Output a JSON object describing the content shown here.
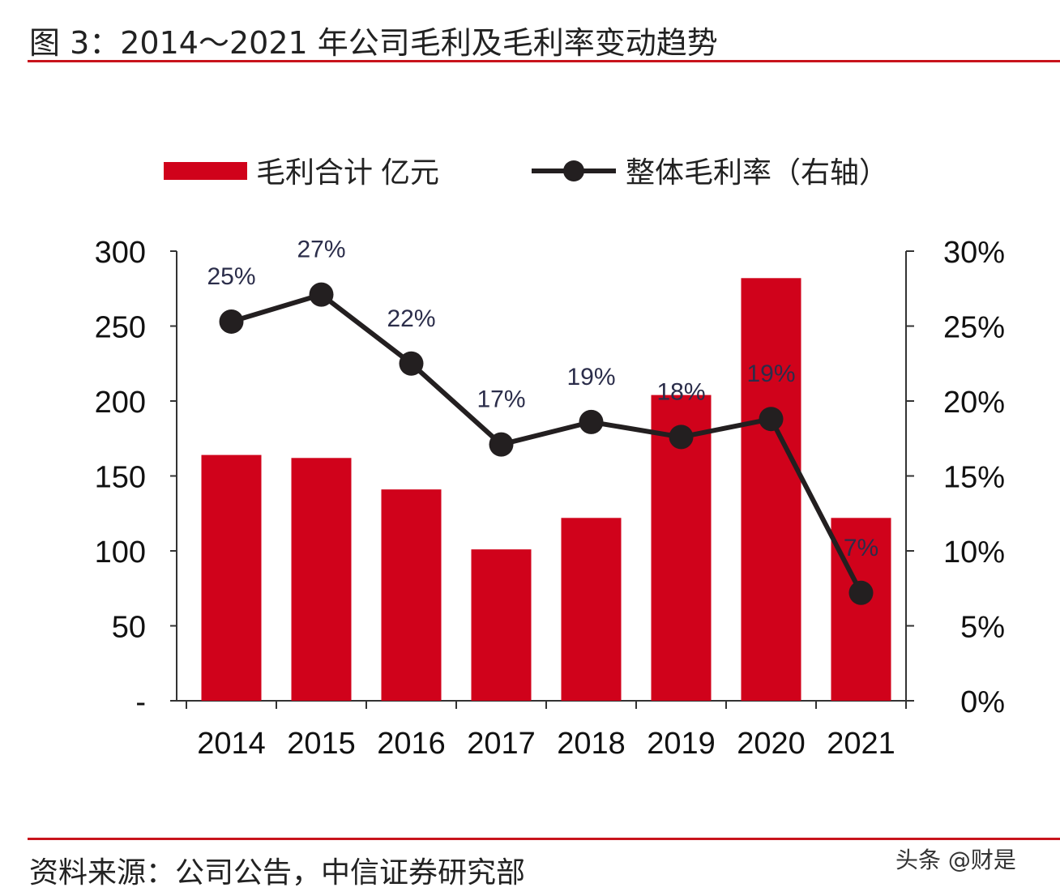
{
  "title": "图 3：2014～2021 年公司毛利及毛利率变动趋势",
  "source": "资料来源：公司公告，中信证券研究部",
  "watermark": "头条 @财是",
  "chart_data": {
    "type": "bar+line",
    "categories": [
      "2014",
      "2015",
      "2016",
      "2017",
      "2018",
      "2019",
      "2020",
      "2021"
    ],
    "series": [
      {
        "name": "毛利合计 亿元",
        "type": "bar",
        "axis": "left",
        "color": "#d0021b",
        "values": [
          164,
          162,
          141,
          101,
          122,
          204,
          282,
          122
        ]
      },
      {
        "name": "整体毛利率（右轴）",
        "type": "line",
        "axis": "right",
        "color": "#231f20",
        "values": [
          25.3,
          27.1,
          22.5,
          17.1,
          18.6,
          17.6,
          18.8,
          7.2
        ],
        "data_labels": [
          "25%",
          "27%",
          "22%",
          "17%",
          "19%",
          "18%",
          "19%",
          "7%"
        ]
      }
    ],
    "left_axis": {
      "ylim": [
        0,
        300
      ],
      "ticks": [
        "-",
        "50",
        "100",
        "150",
        "200",
        "250",
        "300"
      ]
    },
    "right_axis": {
      "ylim": [
        0,
        30
      ],
      "ticks": [
        "0%",
        "5%",
        "10%",
        "15%",
        "20%",
        "25%",
        "30%"
      ]
    },
    "legend_position": "top",
    "grid": false
  }
}
